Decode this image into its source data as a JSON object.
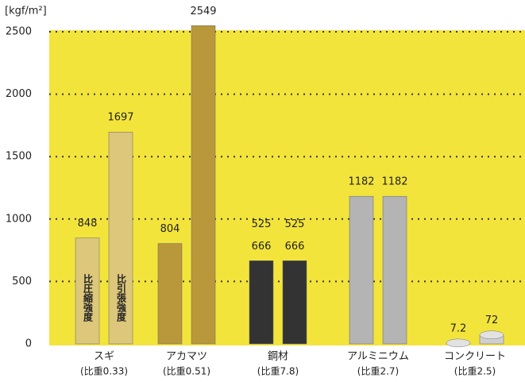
{
  "chart_data": {
    "type": "bar",
    "unit_label": "[kgf/m²]",
    "categories": [
      "スギ",
      "アカマツ",
      "鋼材",
      "アルミニウム",
      "コンクリート"
    ],
    "subcategories": [
      "(比重0.33)",
      "(比重0.51)",
      "(比重7.8)",
      "(比重2.7)",
      "(比重2.5)"
    ],
    "colors": [
      "#dcc77a",
      "#b8983a",
      "#333333",
      "#b4b4b4",
      "#cfcfcf"
    ],
    "series": [
      {
        "name": "比圧縮強度",
        "values": [
          848,
          804,
          666,
          1182,
          7.2
        ],
        "secondary_labels": [
          null,
          null,
          525,
          null,
          null
        ]
      },
      {
        "name": "比引張強度",
        "values": [
          1697,
          2549,
          666,
          1182,
          72
        ],
        "secondary_labels": [
          null,
          null,
          525,
          null,
          null
        ]
      }
    ],
    "ylim": [
      0,
      2500
    ],
    "yticks": [
      0,
      500,
      1000,
      1500,
      2000,
      2500
    ],
    "grid": true
  }
}
